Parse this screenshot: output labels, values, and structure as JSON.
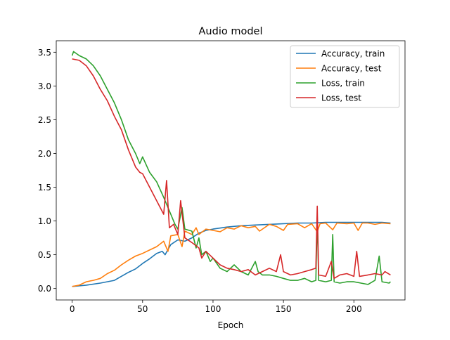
{
  "chart_data": {
    "type": "line",
    "title": "Audio model",
    "xlabel": "Epoch",
    "ylabel": "",
    "xlim": [
      -11.3,
      236.3
    ],
    "ylim": [
      -0.17,
      3.67
    ],
    "xticks": [
      0,
      50,
      100,
      150,
      200
    ],
    "yticks": [
      0.0,
      0.5,
      1.0,
      1.5,
      2.0,
      2.5,
      3.0,
      3.5
    ],
    "xtick_labels": [
      "0",
      "50",
      "100",
      "150",
      "200"
    ],
    "ytick_labels": [
      "0.0",
      "0.5",
      "1.0",
      "1.5",
      "2.0",
      "2.5",
      "3.0",
      "3.5"
    ],
    "legend_position": "top-right",
    "grid": false,
    "series": [
      {
        "name": "Accuracy, train",
        "color": "#1f77b4",
        "points": [
          [
            0,
            0.03
          ],
          [
            10,
            0.05
          ],
          [
            20,
            0.08
          ],
          [
            30,
            0.12
          ],
          [
            40,
            0.24
          ],
          [
            45,
            0.29
          ],
          [
            50,
            0.37
          ],
          [
            55,
            0.44
          ],
          [
            60,
            0.52
          ],
          [
            64,
            0.55
          ],
          [
            66,
            0.5
          ],
          [
            70,
            0.65
          ],
          [
            75,
            0.72
          ],
          [
            80,
            0.7
          ],
          [
            85,
            0.75
          ],
          [
            90,
            0.82
          ],
          [
            95,
            0.86
          ],
          [
            100,
            0.88
          ],
          [
            110,
            0.91
          ],
          [
            120,
            0.93
          ],
          [
            130,
            0.94
          ],
          [
            140,
            0.95
          ],
          [
            150,
            0.96
          ],
          [
            160,
            0.97
          ],
          [
            170,
            0.97
          ],
          [
            180,
            0.98
          ],
          [
            190,
            0.98
          ],
          [
            200,
            0.98
          ],
          [
            210,
            0.98
          ],
          [
            220,
            0.98
          ],
          [
            226,
            0.97
          ]
        ]
      },
      {
        "name": "Accuracy, test",
        "color": "#ff7f0e",
        "points": [
          [
            0,
            0.03
          ],
          [
            5,
            0.05
          ],
          [
            10,
            0.1
          ],
          [
            15,
            0.12
          ],
          [
            20,
            0.15
          ],
          [
            25,
            0.22
          ],
          [
            30,
            0.27
          ],
          [
            35,
            0.35
          ],
          [
            40,
            0.42
          ],
          [
            45,
            0.48
          ],
          [
            50,
            0.52
          ],
          [
            55,
            0.57
          ],
          [
            60,
            0.62
          ],
          [
            65,
            0.7
          ],
          [
            68,
            0.55
          ],
          [
            70,
            0.78
          ],
          [
            75,
            0.8
          ],
          [
            78,
            0.62
          ],
          [
            80,
            0.85
          ],
          [
            85,
            0.8
          ],
          [
            88,
            0.9
          ],
          [
            90,
            0.8
          ],
          [
            95,
            0.88
          ],
          [
            100,
            0.86
          ],
          [
            105,
            0.84
          ],
          [
            110,
            0.9
          ],
          [
            115,
            0.88
          ],
          [
            120,
            0.93
          ],
          [
            125,
            0.9
          ],
          [
            130,
            0.92
          ],
          [
            133,
            0.85
          ],
          [
            140,
            0.95
          ],
          [
            145,
            0.92
          ],
          [
            150,
            0.86
          ],
          [
            153,
            0.95
          ],
          [
            160,
            0.96
          ],
          [
            165,
            0.9
          ],
          [
            170,
            0.96
          ],
          [
            174,
            0.84
          ],
          [
            176,
            0.96
          ],
          [
            180,
            0.97
          ],
          [
            185,
            0.87
          ],
          [
            188,
            0.97
          ],
          [
            195,
            0.96
          ],
          [
            200,
            0.97
          ],
          [
            203,
            0.86
          ],
          [
            206,
            0.97
          ],
          [
            210,
            0.97
          ],
          [
            215,
            0.95
          ],
          [
            220,
            0.97
          ],
          [
            226,
            0.96
          ]
        ]
      },
      {
        "name": "Loss, train",
        "color": "#2ca02c",
        "points": [
          [
            0,
            3.45
          ],
          [
            1,
            3.51
          ],
          [
            5,
            3.45
          ],
          [
            10,
            3.4
          ],
          [
            15,
            3.3
          ],
          [
            20,
            3.15
          ],
          [
            25,
            2.95
          ],
          [
            30,
            2.75
          ],
          [
            35,
            2.5
          ],
          [
            40,
            2.2
          ],
          [
            45,
            2.0
          ],
          [
            48,
            1.85
          ],
          [
            50,
            1.95
          ],
          [
            55,
            1.72
          ],
          [
            60,
            1.58
          ],
          [
            65,
            1.35
          ],
          [
            68,
            1.2
          ],
          [
            70,
            1.1
          ],
          [
            73,
            0.95
          ],
          [
            75,
            0.88
          ],
          [
            78,
            1.2
          ],
          [
            80,
            0.88
          ],
          [
            85,
            0.85
          ],
          [
            88,
            0.6
          ],
          [
            90,
            0.75
          ],
          [
            92,
            0.5
          ],
          [
            95,
            0.55
          ],
          [
            98,
            0.4
          ],
          [
            100,
            0.45
          ],
          [
            105,
            0.3
          ],
          [
            110,
            0.25
          ],
          [
            115,
            0.35
          ],
          [
            120,
            0.25
          ],
          [
            125,
            0.2
          ],
          [
            130,
            0.4
          ],
          [
            132,
            0.25
          ],
          [
            135,
            0.2
          ],
          [
            140,
            0.2
          ],
          [
            145,
            0.18
          ],
          [
            150,
            0.15
          ],
          [
            155,
            0.12
          ],
          [
            160,
            0.12
          ],
          [
            165,
            0.15
          ],
          [
            170,
            0.1
          ],
          [
            173,
            0.12
          ],
          [
            174,
            1.06
          ],
          [
            175,
            0.12
          ],
          [
            180,
            0.1
          ],
          [
            184,
            0.12
          ],
          [
            185,
            0.8
          ],
          [
            186,
            0.1
          ],
          [
            190,
            0.08
          ],
          [
            195,
            0.1
          ],
          [
            200,
            0.1
          ],
          [
            205,
            0.08
          ],
          [
            210,
            0.06
          ],
          [
            215,
            0.12
          ],
          [
            218,
            0.48
          ],
          [
            220,
            0.1
          ],
          [
            225,
            0.08
          ],
          [
            226,
            0.1
          ]
        ]
      },
      {
        "name": "Loss, test",
        "color": "#d62728",
        "points": [
          [
            0,
            3.4
          ],
          [
            5,
            3.38
          ],
          [
            10,
            3.3
          ],
          [
            15,
            3.15
          ],
          [
            20,
            2.95
          ],
          [
            25,
            2.78
          ],
          [
            30,
            2.55
          ],
          [
            35,
            2.35
          ],
          [
            40,
            2.05
          ],
          [
            45,
            1.8
          ],
          [
            48,
            1.72
          ],
          [
            50,
            1.7
          ],
          [
            55,
            1.5
          ],
          [
            60,
            1.3
          ],
          [
            65,
            1.1
          ],
          [
            67,
            1.6
          ],
          [
            69,
            0.9
          ],
          [
            72,
            0.95
          ],
          [
            75,
            0.8
          ],
          [
            77,
            1.3
          ],
          [
            80,
            0.75
          ],
          [
            85,
            0.68
          ],
          [
            90,
            0.6
          ],
          [
            92,
            0.45
          ],
          [
            95,
            0.55
          ],
          [
            100,
            0.45
          ],
          [
            105,
            0.35
          ],
          [
            110,
            0.3
          ],
          [
            115,
            0.28
          ],
          [
            120,
            0.25
          ],
          [
            125,
            0.28
          ],
          [
            130,
            0.2
          ],
          [
            135,
            0.25
          ],
          [
            140,
            0.3
          ],
          [
            145,
            0.25
          ],
          [
            148,
            0.5
          ],
          [
            150,
            0.25
          ],
          [
            155,
            0.2
          ],
          [
            160,
            0.22
          ],
          [
            165,
            0.25
          ],
          [
            170,
            0.28
          ],
          [
            173,
            0.3
          ],
          [
            174,
            1.22
          ],
          [
            175,
            0.2
          ],
          [
            180,
            0.18
          ],
          [
            184,
            0.4
          ],
          [
            186,
            0.15
          ],
          [
            190,
            0.2
          ],
          [
            195,
            0.22
          ],
          [
            200,
            0.18
          ],
          [
            202,
            0.55
          ],
          [
            204,
            0.18
          ],
          [
            210,
            0.2
          ],
          [
            215,
            0.22
          ],
          [
            220,
            0.2
          ],
          [
            222,
            0.25
          ],
          [
            226,
            0.2
          ]
        ]
      }
    ]
  }
}
